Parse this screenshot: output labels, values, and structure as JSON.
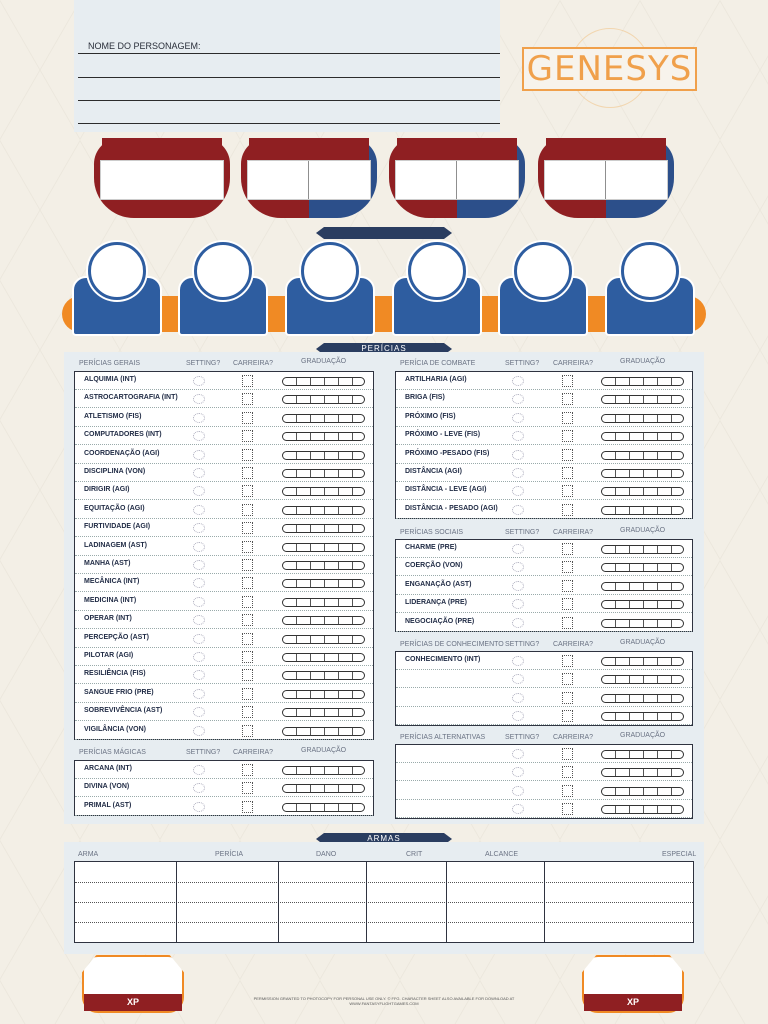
{
  "header": {
    "name_label": "NOME DO PERSONAGEM:",
    "logo": "GENESYS"
  },
  "banners": {
    "skills": "PERÍCIAS",
    "weapons": "ARMAS"
  },
  "columns": {
    "setting": "SETTING?",
    "career": "CARREIRA?",
    "rank": "GRADUAÇÃO"
  },
  "general": {
    "title": "PERÍCIAS GERAIS",
    "skills": [
      "ALQUIMIA (INT)",
      "ASTROCARTOGRAFIA (INT)",
      "ATLETISMO (FIS)",
      "COMPUTADORES (INT)",
      "COORDENAÇÃO (AGI)",
      "DISCIPLINA (VON)",
      "DIRIGIR (AGI)",
      "EQUITAÇÃO (AGI)",
      "FURTIVIDADE (AGI)",
      "LADINAGEM (AST)",
      "MANHA (AST)",
      "MECÂNICA (INT)",
      "MEDICINA (INT)",
      "OPERAR (INT)",
      "PERCEPÇÃO (AST)",
      "PILOTAR (AGI)",
      "RESILIÊNCIA (FIS)",
      "SANGUE FRIO (PRE)",
      "SOBREVIVÊNCIA (AST)",
      "VIGILÂNCIA (VON)"
    ]
  },
  "magic": {
    "title": "PERÍCIAS MÁGICAS",
    "skills": [
      "ARCANA (INT)",
      "DIVINA (VON)",
      "PRIMAL (AST)"
    ]
  },
  "combat": {
    "title": "PERÍCIA DE COMBATE",
    "skills": [
      "ARTILHARIA (AGI)",
      "BRIGA (FIS)",
      "PRÓXIMO (FIS)",
      "PRÓXIMO - LEVE (FIS)",
      "PRÓXIMO -PESADO (FIS)",
      "DISTÂNCIA (AGI)",
      "DISTÂNCIA - LEVE (AGI)",
      "DISTÂNCIA - PESADO (AGI)"
    ]
  },
  "social": {
    "title": "PERÍCIAS SOCIAIS",
    "skills": [
      "CHARME (PRE)",
      "COERÇÃO (VON)",
      "ENGANAÇÃO (AST)",
      "LIDERANÇA (PRE)",
      "NEGOCIAÇÃO (PRE)"
    ]
  },
  "knowledge": {
    "title": "PERÍCIAS DE CONHECIMENTO",
    "skills": [
      "CONHECIMENTO (INT)",
      "",
      "",
      ""
    ]
  },
  "alternative": {
    "title": "PERÍCIAS ALTERNATIVAS",
    "skills": [
      "",
      "",
      "",
      ""
    ]
  },
  "weapons": {
    "headers": [
      "ARMA",
      "PERÍCIA",
      "DANO",
      "CRIT",
      "ALCANCE",
      "ESPECIAL"
    ]
  },
  "xp": {
    "left": "XP",
    "right": "XP"
  },
  "footer": "PERMISSION GRANTED TO PHOTOCOPY FOR PERSONAL USE ONLY. © FFG. CHARACTER SHEET ALSO AVAILABLE FOR DOWNLOAD AT WWW.FANTASYFLIGHTGAMES.COM",
  "colors": {
    "red": "#8f1f22",
    "blue": "#2e5da0",
    "orange": "#f08a24",
    "navy": "#2a3d60"
  }
}
